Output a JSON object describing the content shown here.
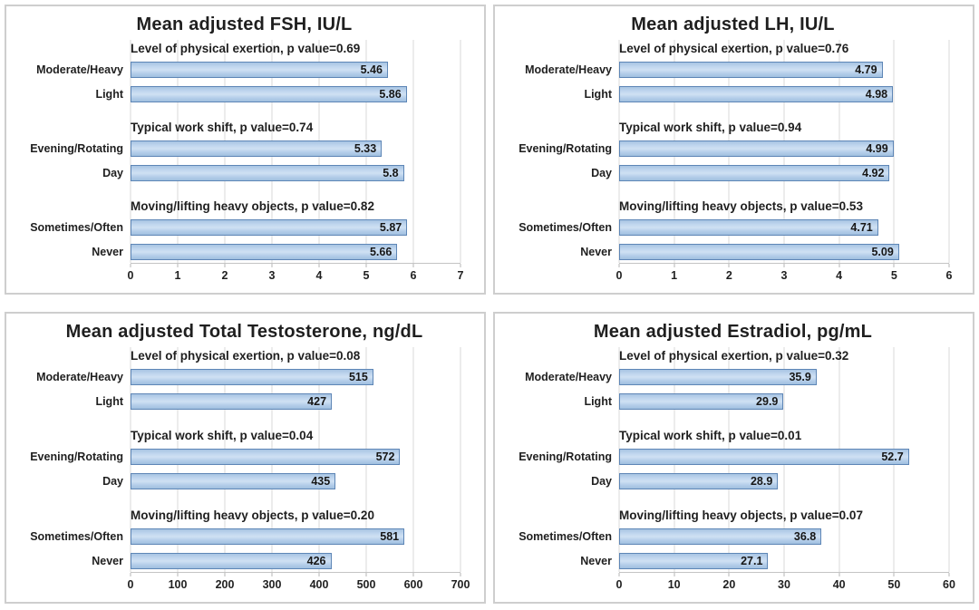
{
  "figure": {
    "background": "#ffffff",
    "panel_border_color": "#cecece",
    "text_color": "#1f1f1f"
  },
  "colors": {
    "bar_fill_light": "#cfe1f3",
    "bar_fill_dark": "#a0bfdf",
    "bar_border": "#5e86b6",
    "gridline": "#d9d9d9",
    "axis_line": "#c4c4c4"
  },
  "chart_data": [
    {
      "type": "bar",
      "orientation": "horizontal",
      "title": "Mean adjusted FSH, IU/L",
      "xlim": [
        0,
        7
      ],
      "xticks": [
        0,
        1,
        2,
        3,
        4,
        5,
        6,
        7
      ],
      "grid": true,
      "legend": "none",
      "groups": [
        {
          "label": "Level of physical exertion, p value=0.69",
          "categories": [
            "Moderate/Heavy",
            "Light"
          ],
          "values": [
            5.46,
            5.86
          ],
          "value_labels": [
            "5.46",
            "5.86"
          ]
        },
        {
          "label": "Typical work shift, p value=0.74",
          "categories": [
            "Evening/Rotating",
            "Day"
          ],
          "values": [
            5.33,
            5.8
          ],
          "value_labels": [
            "5.33",
            "5.8"
          ]
        },
        {
          "label": "Moving/lifting heavy objects, p value=0.82",
          "categories": [
            "Sometimes/Often",
            "Never"
          ],
          "values": [
            5.87,
            5.66
          ],
          "value_labels": [
            "5.87",
            "5.66"
          ]
        }
      ]
    },
    {
      "type": "bar",
      "orientation": "horizontal",
      "title": "Mean adjusted LH, IU/L",
      "xlim": [
        0,
        6
      ],
      "xticks": [
        0,
        1,
        2,
        3,
        4,
        5,
        6
      ],
      "grid": true,
      "legend": "none",
      "groups": [
        {
          "label": "Level of physical exertion, p value=0.76",
          "categories": [
            "Moderate/Heavy",
            "Light"
          ],
          "values": [
            4.79,
            4.98
          ],
          "value_labels": [
            "4.79",
            "4.98"
          ]
        },
        {
          "label": "Typical work shift, p value=0.94",
          "categories": [
            "Evening/Rotating",
            "Day"
          ],
          "values": [
            4.99,
            4.92
          ],
          "value_labels": [
            "4.99",
            "4.92"
          ]
        },
        {
          "label": "Moving/lifting heavy objects, p value=0.53",
          "categories": [
            "Sometimes/Often",
            "Never"
          ],
          "values": [
            4.71,
            5.09
          ],
          "value_labels": [
            "4.71",
            "5.09"
          ]
        }
      ]
    },
    {
      "type": "bar",
      "orientation": "horizontal",
      "title": "Mean adjusted Total Testosterone, ng/dL",
      "xlim": [
        0,
        700
      ],
      "xticks": [
        0,
        100,
        200,
        300,
        400,
        500,
        600,
        700
      ],
      "grid": true,
      "legend": "none",
      "groups": [
        {
          "label": "Level of physical exertion, p value=0.08",
          "categories": [
            "Moderate/Heavy",
            "Light"
          ],
          "values": [
            515,
            427
          ],
          "value_labels": [
            "515",
            "427"
          ]
        },
        {
          "label": "Typical work shift, p value=0.04",
          "categories": [
            "Evening/Rotating",
            "Day"
          ],
          "values": [
            572,
            435
          ],
          "value_labels": [
            "572",
            "435"
          ]
        },
        {
          "label": "Moving/lifting heavy objects, p value=0.20",
          "categories": [
            "Sometimes/Often",
            "Never"
          ],
          "values": [
            581,
            426
          ],
          "value_labels": [
            "581",
            "426"
          ]
        }
      ]
    },
    {
      "type": "bar",
      "orientation": "horizontal",
      "title": "Mean adjusted Estradiol, pg/mL",
      "xlim": [
        0,
        60
      ],
      "xticks": [
        0,
        10,
        20,
        30,
        40,
        50,
        60
      ],
      "grid": true,
      "legend": "none",
      "groups": [
        {
          "label": "Level of physical exertion, p value=0.32",
          "categories": [
            "Moderate/Heavy",
            "Light"
          ],
          "values": [
            35.9,
            29.9
          ],
          "value_labels": [
            "35.9",
            "29.9"
          ]
        },
        {
          "label": "Typical work shift, p value=0.01",
          "categories": [
            "Evening/Rotating",
            "Day"
          ],
          "values": [
            52.7,
            28.9
          ],
          "value_labels": [
            "52.7",
            "28.9"
          ]
        },
        {
          "label": "Moving/lifting heavy objects, p value=0.07",
          "categories": [
            "Sometimes/Often",
            "Never"
          ],
          "values": [
            36.8,
            27.1
          ],
          "value_labels": [
            "36.8",
            "27.1"
          ]
        }
      ]
    }
  ]
}
